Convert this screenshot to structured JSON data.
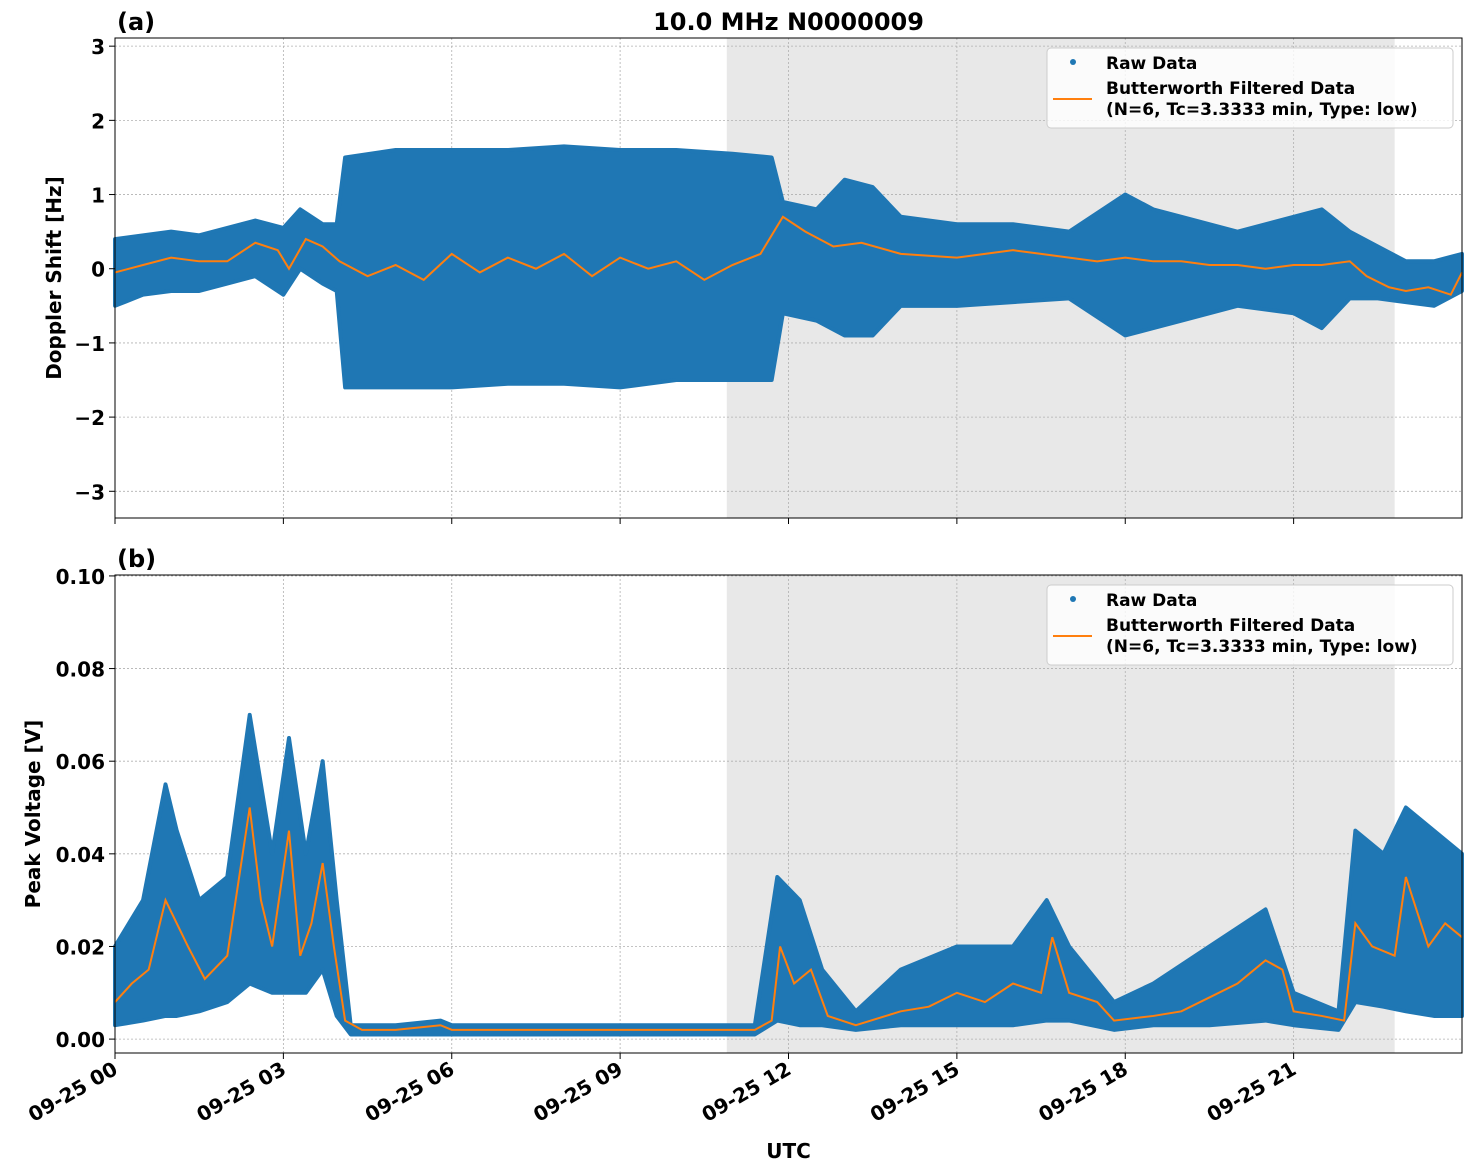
{
  "chart_data": [
    {
      "type": "scatter",
      "panel_label": "(a)",
      "title": "10.0 MHz N0000009",
      "xlabel": "",
      "ylabel": "Doppler Shift [Hz]",
      "x_unit": "hours UTC since 09-25 00:00",
      "xlim": [
        0,
        24
      ],
      "ylim": [
        -3.36,
        3.11
      ],
      "yticks": [
        -3,
        -2,
        -1,
        0,
        1,
        2,
        3
      ],
      "ytick_labels": [
        "−3",
        "−2",
        "−1",
        "0",
        "1",
        "2",
        "3"
      ],
      "grid": true,
      "shaded_interval_hours": [
        10.9,
        22.8
      ],
      "legend": {
        "placement": "top-right",
        "entries": [
          "Raw Data",
          "Butterworth Filtered Data",
          "(N=6, Tc=3.3333 min, Type: low)"
        ]
      },
      "series": [
        {
          "name": "Raw Data",
          "kind": "points",
          "color": "#1f77b4",
          "envelope_x": [
            0,
            0.5,
            1,
            1.5,
            2,
            2.5,
            3,
            3.3,
            3.7,
            3.95,
            4.1,
            5,
            6,
            7,
            8,
            9,
            10,
            11,
            11.7,
            11.9,
            12.5,
            13,
            13.5,
            14,
            15,
            16,
            17,
            18,
            18.5,
            19,
            20,
            21,
            21.5,
            22,
            22.5,
            23,
            23.5,
            24
          ],
          "envelope_low": [
            -0.5,
            -0.35,
            -0.3,
            -0.3,
            -0.2,
            -0.1,
            -0.35,
            0,
            -0.2,
            -0.3,
            -1.6,
            -1.6,
            -1.6,
            -1.55,
            -1.55,
            -1.6,
            -1.5,
            -1.5,
            -1.5,
            -0.6,
            -0.7,
            -0.9,
            -0.9,
            -0.5,
            -0.5,
            -0.45,
            -0.4,
            -0.9,
            -0.8,
            -0.7,
            -0.5,
            -0.6,
            -0.8,
            -0.4,
            -0.4,
            -0.45,
            -0.5,
            -0.3
          ],
          "envelope_high": [
            0.4,
            0.45,
            0.5,
            0.45,
            0.55,
            0.65,
            0.55,
            0.8,
            0.6,
            0.6,
            1.5,
            1.6,
            1.6,
            1.6,
            1.65,
            1.6,
            1.6,
            1.55,
            1.5,
            0.9,
            0.8,
            1.2,
            1.1,
            0.7,
            0.6,
            0.6,
            0.5,
            1.0,
            0.8,
            0.7,
            0.5,
            0.7,
            0.8,
            0.5,
            0.3,
            0.1,
            0.1,
            0.2
          ]
        },
        {
          "name": "Butterworth Filtered Data",
          "kind": "line",
          "color": "#ff7f0e",
          "x": [
            0,
            0.5,
            1,
            1.5,
            2,
            2.5,
            2.9,
            3.1,
            3.4,
            3.7,
            4,
            4.5,
            5,
            5.5,
            6,
            6.5,
            7,
            7.5,
            8,
            8.5,
            9,
            9.5,
            10,
            10.5,
            11,
            11.5,
            11.9,
            12.3,
            12.8,
            13.3,
            14,
            15,
            16,
            16.5,
            17,
            17.5,
            18,
            18.5,
            19,
            19.5,
            20,
            20.5,
            21,
            21.5,
            22,
            22.3,
            22.7,
            23,
            23.4,
            23.8,
            24
          ],
          "y": [
            -0.05,
            0.05,
            0.15,
            0.1,
            0.1,
            0.35,
            0.25,
            0.0,
            0.4,
            0.3,
            0.1,
            -0.1,
            0.05,
            -0.15,
            0.2,
            -0.05,
            0.15,
            0.0,
            0.2,
            -0.1,
            0.15,
            0.0,
            0.1,
            -0.15,
            0.05,
            0.2,
            0.7,
            0.5,
            0.3,
            0.35,
            0.2,
            0.15,
            0.25,
            0.2,
            0.15,
            0.1,
            0.15,
            0.1,
            0.1,
            0.05,
            0.05,
            0.0,
            0.05,
            0.05,
            0.1,
            -0.1,
            -0.25,
            -0.3,
            -0.25,
            -0.35,
            -0.05
          ]
        }
      ]
    },
    {
      "type": "scatter",
      "panel_label": "(b)",
      "title": "",
      "xlabel": "UTC",
      "ylabel": "Peak Voltage [V]",
      "x_unit": "hours UTC since 09-25 00:00",
      "xlim": [
        0,
        24
      ],
      "ylim": [
        -0.003,
        0.1002
      ],
      "xticks": [
        0,
        3,
        6,
        9,
        12,
        15,
        18,
        21
      ],
      "xtick_labels": [
        "09-25 00",
        "09-25 03",
        "09-25 06",
        "09-25 09",
        "09-25 12",
        "09-25 15",
        "09-25 18",
        "09-25 21"
      ],
      "yticks": [
        0,
        0.02,
        0.04,
        0.06,
        0.08,
        0.1
      ],
      "ytick_labels": [
        "0.00",
        "0.02",
        "0.04",
        "0.06",
        "0.08",
        "0.10"
      ],
      "grid": true,
      "shaded_interval_hours": [
        10.9,
        22.8
      ],
      "legend": {
        "placement": "top-right",
        "entries": [
          "Raw Data",
          "Butterworth Filtered Data",
          "(N=6, Tc=3.3333 min, Type: low)"
        ]
      },
      "series": [
        {
          "name": "Raw Data",
          "kind": "points",
          "color": "#1f77b4",
          "envelope_x": [
            0,
            0.5,
            0.9,
            1.1,
            1.5,
            2,
            2.4,
            2.8,
            3.1,
            3.4,
            3.7,
            3.95,
            4.2,
            5,
            5.8,
            6,
            8,
            10,
            11.4,
            11.8,
            12.2,
            12.6,
            13.2,
            14,
            15,
            16,
            16.6,
            17,
            17.8,
            18.5,
            19.5,
            20.5,
            21,
            21.8,
            22.1,
            22.6,
            23,
            23.5,
            24
          ],
          "envelope_low": [
            0.003,
            0.004,
            0.005,
            0.005,
            0.006,
            0.008,
            0.012,
            0.01,
            0.01,
            0.01,
            0.015,
            0.005,
            0.001,
            0.001,
            0.001,
            0.001,
            0.001,
            0.001,
            0.001,
            0.004,
            0.003,
            0.003,
            0.002,
            0.003,
            0.003,
            0.003,
            0.004,
            0.004,
            0.002,
            0.003,
            0.003,
            0.004,
            0.003,
            0.002,
            0.008,
            0.007,
            0.006,
            0.005,
            0.005
          ],
          "envelope_high": [
            0.02,
            0.03,
            0.055,
            0.045,
            0.03,
            0.035,
            0.07,
            0.04,
            0.065,
            0.04,
            0.06,
            0.03,
            0.003,
            0.003,
            0.004,
            0.003,
            0.003,
            0.003,
            0.003,
            0.035,
            0.03,
            0.015,
            0.006,
            0.015,
            0.02,
            0.02,
            0.03,
            0.02,
            0.008,
            0.012,
            0.02,
            0.028,
            0.01,
            0.006,
            0.045,
            0.04,
            0.05,
            0.045,
            0.04
          ]
        },
        {
          "name": "Butterworth Filtered Data",
          "kind": "line",
          "color": "#ff7f0e",
          "x": [
            0,
            0.3,
            0.6,
            0.9,
            1.1,
            1.3,
            1.6,
            2,
            2.4,
            2.6,
            2.8,
            3.1,
            3.3,
            3.5,
            3.7,
            3.9,
            4.1,
            4.4,
            5,
            5.8,
            6,
            8,
            10,
            11.4,
            11.7,
            11.85,
            12.1,
            12.4,
            12.7,
            13.2,
            14,
            14.5,
            15,
            15.5,
            16,
            16.5,
            16.7,
            17,
            17.5,
            17.8,
            18.5,
            19,
            19.5,
            20,
            20.5,
            20.8,
            21,
            21.5,
            21.9,
            22.1,
            22.4,
            22.8,
            23,
            23.4,
            23.7,
            24
          ],
          "y": [
            0.008,
            0.012,
            0.015,
            0.03,
            0.025,
            0.02,
            0.013,
            0.018,
            0.05,
            0.03,
            0.02,
            0.045,
            0.018,
            0.025,
            0.038,
            0.02,
            0.004,
            0.002,
            0.002,
            0.003,
            0.002,
            0.002,
            0.002,
            0.002,
            0.004,
            0.02,
            0.012,
            0.015,
            0.005,
            0.003,
            0.006,
            0.007,
            0.01,
            0.008,
            0.012,
            0.01,
            0.022,
            0.01,
            0.008,
            0.004,
            0.005,
            0.006,
            0.009,
            0.012,
            0.017,
            0.015,
            0.006,
            0.005,
            0.004,
            0.025,
            0.02,
            0.018,
            0.035,
            0.02,
            0.025,
            0.022
          ]
        }
      ]
    }
  ]
}
